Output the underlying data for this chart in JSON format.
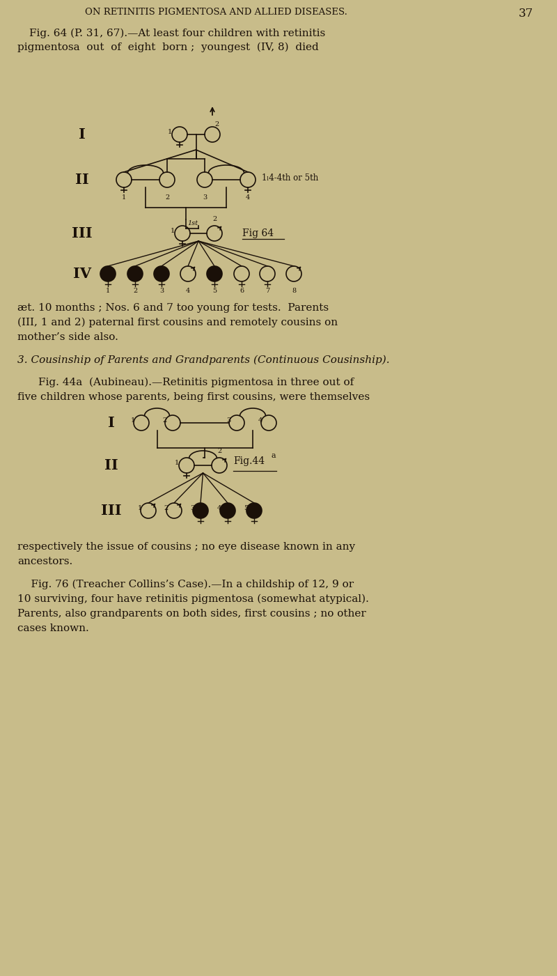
{
  "bg_color": "#c8bc8a",
  "text_color": "#1a1008",
  "page_header": "ON RETINITIS PIGMENTOSA AND ALLIED DISEASES.",
  "page_number": "37",
  "para1_line1": "Fig. 64 (P. 31, 67).—At least four children with retinitis",
  "para1_line2": "pigmentosa  out  of  eight  born ;  youngest  (IV, 8)  died",
  "para2_line1": "æt. 10 months ; Nos. 6 and 7 too young for tests.  Parents",
  "para2_line2": "(III, 1 and 2) paternal first cousins and remotely cousins on",
  "para2_line3": "mother’s side also.",
  "section_header": "3. Cousinship of Parents and Grandparents (Continuous Cousinship).",
  "para3_line1": "Fig. 44a  (Aubineau).—Retinitis pigmentosa in three out of",
  "para3_line2": "five children whose parents, being first cousins, were themselves",
  "para4_line1": "respectively the issue of cousins ; no eye disease known in any",
  "para4_line2": "ancestors.",
  "para5_line1": "    Fig. 76 (Treacher Collins’s Case).—In a childship of 12, 9 or",
  "para5_line2": "10 surviving, four have retinitis pigmentosa (somewhat atypical).",
  "para5_line3": "Parents, also grandparents on both sides, first cousins ; no other",
  "para5_line4": "cases known."
}
